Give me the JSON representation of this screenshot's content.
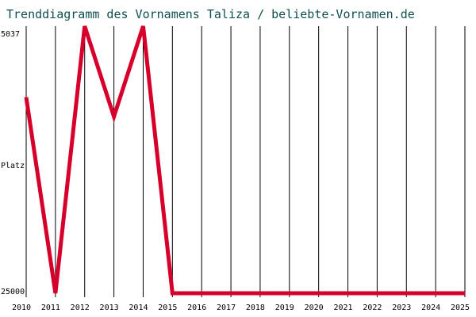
{
  "chart_data": {
    "type": "line",
    "title": "Trenddiagramm des Vornamens Taliza / beliebte-Vornamen.de",
    "ylabel": "Platz",
    "y_tick_labels": [
      "5037",
      "25000"
    ],
    "ylim": [
      25000,
      5037
    ],
    "y_inverted": true,
    "grid": "vertical",
    "x": [
      2010,
      2011,
      2012,
      2013,
      2014,
      2015,
      2016,
      2017,
      2018,
      2019,
      2020,
      2021,
      2022,
      2023,
      2024,
      2025
    ],
    "x_tick_labels": [
      "2010",
      "2011",
      "2012",
      "2013",
      "2014",
      "2015",
      "2016",
      "2017",
      "2018",
      "2019",
      "2020",
      "2021",
      "2022",
      "2023",
      "2024",
      "2025"
    ],
    "series": [
      {
        "values": [
          10350,
          25000,
          5037,
          11800,
          5037,
          25000,
          25000,
          25000,
          25000,
          25000,
          25000,
          25000,
          25000,
          25000,
          25000,
          25000
        ],
        "color": "#d6002a"
      }
    ]
  }
}
